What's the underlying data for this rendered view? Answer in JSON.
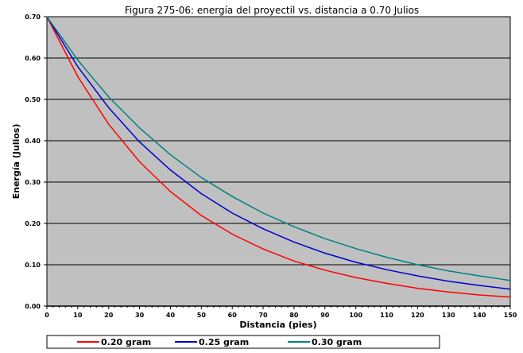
{
  "chart_data": {
    "type": "line",
    "title": "Figura 275-06: energía del proyectil vs. distancia a 0.70 Julios",
    "xlabel": "Distancia (pies)",
    "ylabel": "Energía (Julios)",
    "xlim": [
      0,
      150
    ],
    "ylim": [
      0,
      0.7
    ],
    "x_major_ticks": [
      0,
      10,
      20,
      30,
      40,
      50,
      60,
      70,
      80,
      90,
      100,
      110,
      120,
      130,
      140,
      150
    ],
    "y_major_ticks": [
      0.0,
      0.1,
      0.2,
      0.3,
      0.4,
      0.5,
      0.6,
      0.7
    ],
    "y_tick_labels": [
      "0.00",
      "0.10",
      "0.20",
      "0.30",
      "0.40",
      "0.50",
      "0.60",
      "0.70"
    ],
    "grid": "horizontal",
    "plot_background": "#c0c0c0",
    "legend_position": "bottom",
    "x": [
      0,
      10,
      20,
      30,
      40,
      50,
      60,
      70,
      80,
      90,
      100,
      110,
      120,
      130,
      140,
      150
    ],
    "series": [
      {
        "name": "0.20 gram",
        "color": "#ff0000",
        "values": [
          0.7,
          0.555,
          0.44,
          0.349,
          0.277,
          0.219,
          0.174,
          0.138,
          0.109,
          0.087,
          0.069,
          0.055,
          0.043,
          0.034,
          0.027,
          0.022
        ]
      },
      {
        "name": "0.25 gram",
        "color": "#0000cc",
        "values": [
          0.7,
          0.579,
          0.48,
          0.397,
          0.329,
          0.272,
          0.225,
          0.187,
          0.155,
          0.128,
          0.106,
          0.088,
          0.073,
          0.06,
          0.05,
          0.041
        ]
      },
      {
        "name": "0.30 gram",
        "color": "#008080",
        "values": [
          0.7,
          0.595,
          0.506,
          0.431,
          0.366,
          0.311,
          0.265,
          0.225,
          0.192,
          0.163,
          0.139,
          0.118,
          0.1,
          0.085,
          0.073,
          0.062
        ]
      }
    ]
  }
}
